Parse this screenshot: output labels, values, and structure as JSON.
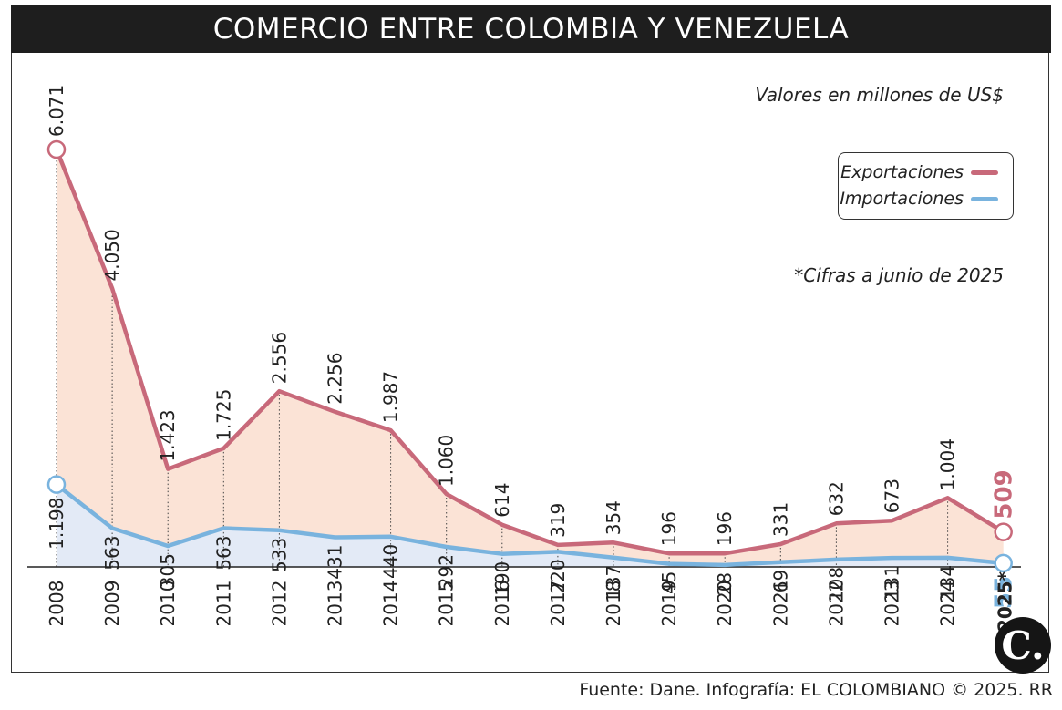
{
  "title": "COMERCIO ENTRE COLOMBIA Y VENEZUELA",
  "unit_note": "Valores en millones de US$",
  "footnote": "*Cifras a junio de 2025",
  "source": "Fuente: Dane. Infografía: EL COLOMBIANO © 2025. RR",
  "logo_text": "C.",
  "colors": {
    "exports": "#c8697a",
    "imports": "#79b3de",
    "exports_fill": "#fbe3d6",
    "imports_fill": "#e3eaf6",
    "title_bg": "#1e1e1e"
  },
  "chart_data": {
    "type": "area",
    "categories": [
      "2008",
      "2009",
      "2010",
      "2011",
      "2012",
      "2013",
      "2014",
      "2015",
      "2016",
      "2017",
      "2018",
      "2019",
      "2020",
      "2021",
      "2022",
      "2023",
      "2024",
      "2025*"
    ],
    "series": [
      {
        "name": "Exportaciones",
        "values": [
          6071,
          4050,
          1423,
          1725,
          2556,
          2256,
          1987,
          1060,
          614,
          319,
          354,
          196,
          196,
          331,
          632,
          673,
          1004,
          509
        ],
        "labels": [
          "6.071",
          "4.050",
          "1.423",
          "1.725",
          "2.556",
          "2.256",
          "1.987",
          "1.060",
          "614",
          "319",
          "354",
          "196",
          "196",
          "331",
          "632",
          "673",
          "1.004",
          "509"
        ]
      },
      {
        "name": "Importaciones",
        "values": [
          1198,
          563,
          305,
          563,
          533,
          431,
          440,
          292,
          190,
          220,
          137,
          45,
          28,
          69,
          108,
          131,
          134,
          55
        ],
        "labels": [
          "1.198",
          "563",
          "305",
          "563",
          "533",
          "431",
          "440",
          "292",
          "190",
          "220",
          "137",
          "45",
          "28",
          "69",
          "108",
          "131",
          "134",
          "55"
        ]
      }
    ],
    "legend_position": "top-right",
    "grid": false
  }
}
